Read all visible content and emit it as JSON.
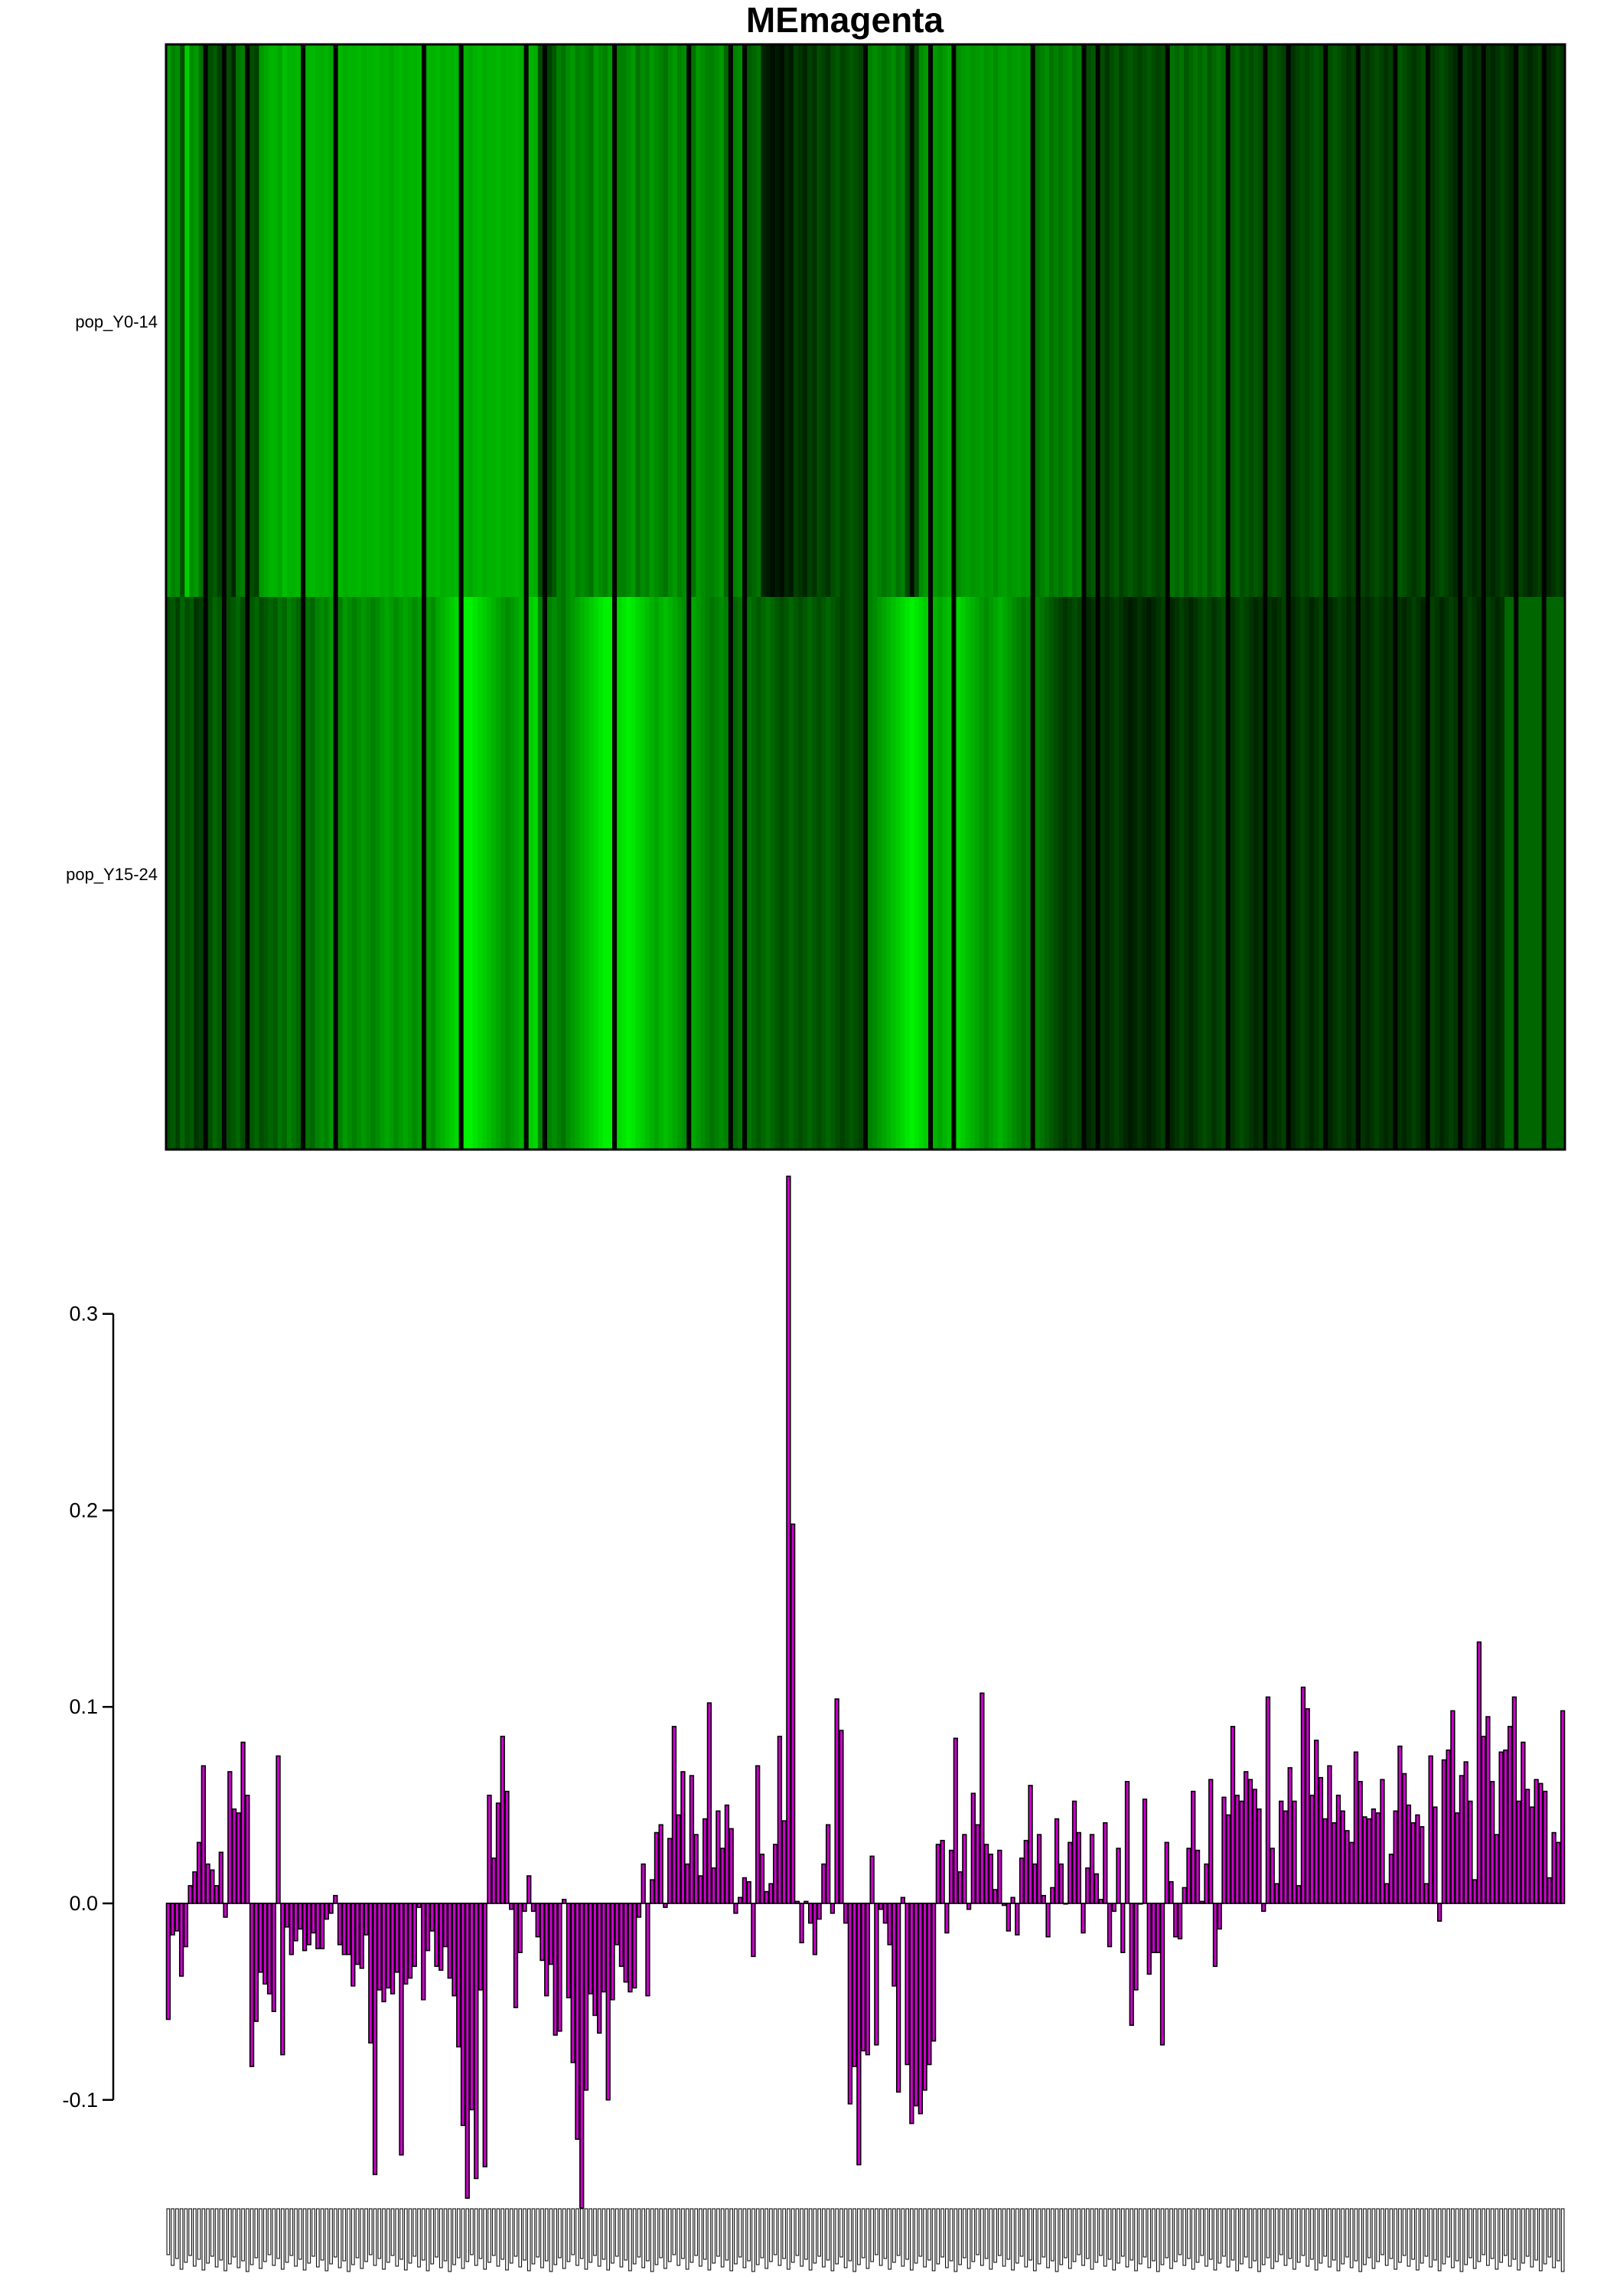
{
  "chart_data": [
    {
      "type": "heatmap",
      "title": "MEmagenta",
      "rows": [
        "pop_Y0-14",
        "pop_Y15-24"
      ],
      "n_columns": 301,
      "colormap": [
        "#00ff00",
        "#000000",
        "#ff0000"
      ],
      "highlight_column_index": 151,
      "rows_values": [
        [
          -0.6,
          -0.5,
          -0.55,
          -0.3,
          -0.8,
          -0.55,
          -0.6,
          -0.45,
          -0.2,
          -0.3,
          -0.35,
          -0.25,
          -0.4,
          -0.3,
          -0.15,
          -0.45,
          -0.5,
          -0.35,
          -0.3,
          -0.25,
          -0.6,
          -0.65,
          -0.7,
          -0.7,
          -0.65,
          -0.75,
          -0.7,
          -0.7,
          -0.72,
          -0.68,
          -0.7,
          -0.72,
          -0.7,
          -0.68,
          -0.7,
          -0.66,
          -0.7,
          -0.72,
          -0.68,
          -0.7,
          -0.7,
          -0.72,
          -0.68,
          -0.7,
          -0.7,
          -0.72,
          -0.68,
          -0.7,
          -0.66,
          -0.7,
          -0.72,
          -0.68,
          -0.7,
          -0.7,
          -0.72,
          -0.68,
          -0.7,
          -0.7,
          -0.72,
          -0.68,
          -0.7,
          -0.7,
          -0.72,
          -0.68,
          -0.7,
          -0.66,
          -0.7,
          -0.72,
          -0.68,
          -0.7,
          -0.7,
          -0.72,
          -0.68,
          -0.7,
          -0.7,
          -0.72,
          -0.68,
          -0.7,
          -0.7,
          -0.68,
          -0.3,
          -0.2,
          -0.25,
          -0.35,
          -0.5,
          -0.45,
          -0.55,
          -0.6,
          -0.5,
          -0.55,
          -0.5,
          -0.45,
          -0.6,
          -0.55,
          -0.5,
          -0.6,
          -0.55,
          -0.5,
          -0.5,
          -0.55,
          -0.6,
          -0.45,
          -0.55,
          -0.5,
          -0.6,
          -0.55,
          -0.5,
          -0.45,
          -0.55,
          -0.6,
          -0.5,
          -0.55,
          -0.5,
          -0.45,
          -0.6,
          -0.55,
          -0.5,
          -0.5,
          -0.55,
          -0.6,
          -0.4,
          -0.45,
          -0.5,
          -0.55,
          -0.3,
          -0.35,
          -0.4,
          -0.45,
          -0.15,
          -0.1,
          -0.05,
          -0.1,
          -0.05,
          -0.15,
          -0.1,
          -0.25,
          -0.2,
          -0.15,
          -0.25,
          -0.2,
          -0.3,
          -0.25,
          -0.2,
          -0.3,
          -0.35,
          -0.25,
          -0.3,
          -0.35,
          -0.3,
          -0.25,
          0.95,
          -0.5,
          -0.55,
          -0.5,
          -0.45,
          -0.5,
          -0.55,
          -0.45,
          -0.5,
          -0.3,
          -0.05,
          -0.3,
          -0.55,
          -0.6,
          -0.65,
          -0.6,
          -0.55,
          -0.6,
          -0.65,
          -0.6,
          -0.55,
          -0.6,
          -0.62,
          -0.58,
          -0.6,
          -0.62,
          -0.58,
          -0.6,
          -0.55,
          -0.6,
          -0.62,
          -0.58,
          -0.6,
          -0.62,
          -0.58,
          -0.6,
          -0.5,
          -0.45,
          -0.5,
          -0.55,
          -0.45,
          -0.5,
          -0.45,
          -0.5,
          -0.55,
          -0.45,
          -0.5,
          -0.35,
          -0.3,
          -0.35,
          -0.25,
          -0.3,
          -0.2,
          -0.3,
          -0.35,
          -0.25,
          -0.3,
          -0.35,
          -0.3,
          -0.25,
          -0.3,
          -0.35,
          -0.3,
          -0.25,
          -0.3,
          -0.35,
          -0.45,
          -0.4,
          -0.45,
          -0.35,
          -0.4,
          -0.45,
          -0.4,
          -0.45,
          -0.35,
          -0.4,
          -0.45,
          -0.4,
          -0.45,
          -0.35,
          -0.4,
          -0.3,
          -0.35,
          -0.3,
          -0.35,
          -0.3,
          -0.25,
          -0.3,
          -0.35,
          -0.3,
          -0.25,
          -0.3,
          -0.2,
          -0.25,
          -0.3,
          -0.25,
          -0.3,
          -0.35,
          -0.3,
          -0.25,
          -0.3,
          -0.35,
          -0.3,
          -0.25,
          -0.2,
          -0.25,
          -0.3,
          -0.25,
          -0.2,
          -0.25,
          -0.3,
          -0.25,
          -0.2,
          -0.25,
          -0.3,
          -0.35,
          -0.3,
          -0.25,
          -0.2,
          -0.25,
          -0.3,
          -0.25,
          -0.2,
          -0.25,
          -0.3,
          -0.25,
          -0.2,
          -0.15,
          -0.2,
          -0.25,
          -0.2,
          -0.15,
          -0.2,
          -0.25,
          -0.2,
          -0.15,
          -0.2,
          -0.25,
          -0.2,
          -0.15,
          -0.2,
          -0.25,
          -0.2,
          -0.15,
          -0.2,
          -0.25,
          -0.2,
          -0.15,
          -0.2,
          -0.25,
          -0.2,
          -0.15,
          -0.2
        ],
        [
          -0.3,
          -0.35,
          -0.25,
          -0.4,
          -0.3,
          -0.35,
          -0.2,
          -0.25,
          -0.35,
          -0.3,
          -0.4,
          -0.35,
          -0.25,
          -0.3,
          -0.35,
          -0.4,
          -0.3,
          -0.25,
          -0.35,
          -0.4,
          -0.3,
          -0.35,
          -0.4,
          -0.35,
          -0.45,
          -0.4,
          -0.5,
          -0.45,
          -0.4,
          -0.5,
          -0.45,
          -0.4,
          -0.5,
          -0.55,
          -0.5,
          -0.6,
          -0.55,
          -0.5,
          -0.6,
          -0.55,
          -0.5,
          -0.55,
          -0.6,
          -0.55,
          -0.5,
          -0.55,
          -0.6,
          -0.65,
          -0.6,
          -0.55,
          -0.6,
          -0.65,
          -0.6,
          -0.55,
          -0.6,
          -0.65,
          -0.6,
          -0.55,
          -0.65,
          -0.7,
          -0.75,
          -0.8,
          -0.85,
          -0.9,
          -0.95,
          -0.95,
          -0.9,
          -0.85,
          -0.8,
          -0.75,
          -0.7,
          -0.65,
          -0.6,
          -0.55,
          -0.6,
          -0.65,
          -0.7,
          -0.75,
          -0.8,
          -0.85,
          -0.5,
          -0.45,
          -0.5,
          -0.55,
          -0.5,
          -0.45,
          -0.55,
          -0.6,
          -0.65,
          -0.7,
          -0.75,
          -0.8,
          -0.85,
          -0.9,
          -0.95,
          -0.95,
          -0.9,
          -0.85,
          -0.9,
          -0.95,
          -0.9,
          -0.85,
          -0.8,
          -0.75,
          -0.7,
          -0.65,
          -0.7,
          -0.75,
          -0.7,
          -0.65,
          -0.6,
          -0.55,
          -0.6,
          -0.65,
          -0.6,
          -0.55,
          -0.5,
          -0.45,
          -0.5,
          -0.55,
          -0.5,
          -0.45,
          -0.4,
          -0.45,
          -0.5,
          -0.45,
          -0.4,
          -0.35,
          -0.4,
          -0.45,
          -0.4,
          -0.35,
          -0.3,
          -0.35,
          -0.4,
          -0.35,
          -0.3,
          -0.35,
          -0.4,
          -0.35,
          -0.3,
          -0.35,
          -0.4,
          -0.35,
          -0.3,
          -0.25,
          -0.3,
          -0.35,
          -0.3,
          -0.25,
          0.0,
          -0.5,
          -0.55,
          -0.6,
          -0.65,
          -0.7,
          -0.75,
          -0.8,
          -0.85,
          -0.9,
          -0.95,
          -0.9,
          -0.85,
          -0.8,
          -0.75,
          -0.7,
          -0.65,
          -0.7,
          -0.75,
          -0.8,
          -0.85,
          -0.8,
          -0.75,
          -0.7,
          -0.65,
          -0.6,
          -0.55,
          -0.6,
          -0.65,
          -0.7,
          -0.65,
          -0.6,
          -0.55,
          -0.5,
          -0.45,
          -0.5,
          -0.55,
          -0.5,
          -0.45,
          -0.4,
          -0.35,
          -0.3,
          -0.25,
          -0.2,
          -0.25,
          -0.3,
          -0.25,
          -0.2,
          -0.15,
          -0.2,
          -0.25,
          -0.2,
          -0.15,
          -0.2,
          -0.25,
          -0.2,
          -0.15,
          -0.1,
          -0.15,
          -0.2,
          -0.15,
          -0.1,
          -0.15,
          -0.2,
          -0.25,
          -0.2,
          -0.15,
          -0.2,
          -0.25,
          -0.2,
          -0.15,
          -0.2,
          -0.25,
          -0.3,
          -0.25,
          -0.2,
          -0.25,
          -0.3,
          -0.25,
          -0.2,
          -0.25,
          -0.3,
          -0.25,
          -0.2,
          -0.15,
          -0.2,
          -0.25,
          -0.2,
          -0.15,
          -0.2,
          -0.25,
          -0.2,
          -0.15,
          -0.2,
          -0.25,
          -0.2,
          -0.15,
          -0.2,
          -0.25,
          -0.2,
          -0.15,
          -0.2,
          -0.25,
          -0.2,
          -0.15,
          -0.2,
          -0.25,
          -0.2,
          -0.15,
          -0.2,
          -0.25,
          -0.2,
          -0.15,
          -0.2,
          -0.25,
          -0.2,
          -0.15,
          -0.2,
          -0.25,
          -0.2,
          -0.15,
          -0.2,
          -0.25,
          -0.2,
          -0.15,
          -0.2,
          -0.25,
          -0.2,
          -0.15,
          -0.2,
          -0.25,
          -0.2,
          -0.15,
          -0.2,
          -0.25,
          -0.2,
          -0.15,
          -0.2
        ]
      ],
      "dark_columns": [
        8,
        12,
        17,
        29,
        36,
        55,
        63,
        77,
        81,
        96,
        112,
        121,
        124,
        150,
        164,
        169,
        186,
        197,
        200,
        215,
        228,
        236,
        241,
        249,
        256,
        264,
        271,
        278,
        283,
        290,
        296
      ]
    },
    {
      "type": "bar",
      "color": "#cc00cc",
      "ylim": [
        -0.16,
        0.37
      ],
      "yticks": [
        -0.1,
        0.0,
        0.1,
        0.2,
        0.3
      ],
      "ytick_labels": [
        "-0.1",
        "0.0",
        "0.1",
        "0.2",
        "0.3"
      ],
      "xtick_labels": "unreadable (dense rotated sample labels)",
      "values": [
        -0.059,
        -0.016,
        -0.014,
        -0.037,
        -0.022,
        0.009,
        0.016,
        0.031,
        0.07,
        0.02,
        0.017,
        0.009,
        0.026,
        -0.007,
        0.067,
        0.048,
        0.046,
        0.082,
        0.055,
        -0.083,
        -0.06,
        -0.035,
        -0.041,
        -0.046,
        -0.055,
        0.075,
        -0.077,
        -0.012,
        -0.026,
        -0.019,
        -0.013,
        -0.024,
        -0.021,
        -0.015,
        -0.023,
        -0.023,
        -0.008,
        -0.005,
        0.004,
        -0.021,
        -0.026,
        -0.026,
        -0.042,
        -0.031,
        -0.033,
        -0.016,
        -0.071,
        -0.138,
        -0.044,
        -0.05,
        -0.043,
        -0.046,
        -0.035,
        -0.128,
        -0.041,
        -0.038,
        -0.032,
        -0.002,
        -0.049,
        -0.024,
        -0.014,
        -0.032,
        -0.034,
        -0.022,
        -0.038,
        -0.047,
        -0.073,
        -0.113,
        -0.15,
        -0.105,
        -0.14,
        -0.044,
        -0.134,
        0.055,
        0.023,
        0.051,
        0.085,
        0.057,
        -0.003,
        -0.053,
        -0.025,
        -0.004,
        0.014,
        -0.004,
        -0.017,
        -0.029,
        -0.047,
        -0.031,
        -0.067,
        -0.065,
        0.002,
        -0.048,
        -0.081,
        -0.12,
        -0.155,
        -0.095,
        -0.046,
        -0.057,
        -0.066,
        -0.045,
        -0.1,
        -0.049,
        -0.021,
        -0.032,
        -0.04,
        -0.045,
        -0.043,
        -0.007,
        0.02,
        -0.047,
        0.012,
        0.036,
        0.04,
        -0.002,
        0.033,
        0.09,
        0.045,
        0.067,
        0.02,
        0.065,
        0.035,
        0.014,
        0.043,
        0.102,
        0.018,
        0.047,
        0.028,
        0.05,
        0.038,
        -0.005,
        0.003,
        0.013,
        0.011,
        -0.027,
        0.07,
        0.025,
        0.006,
        0.01,
        0.03,
        0.085,
        0.042,
        0.37,
        0.193,
        0.001,
        -0.02,
        0.001,
        -0.01,
        -0.026,
        -0.008,
        0.02,
        0.04,
        -0.005,
        0.104,
        0.088,
        -0.01,
        -0.102,
        -0.083,
        -0.133,
        -0.075,
        -0.077,
        0.024,
        -0.072,
        -0.003,
        -0.01,
        -0.021,
        -0.042,
        -0.096,
        0.003,
        -0.082,
        -0.112,
        -0.103,
        -0.107,
        -0.095,
        -0.082,
        -0.07,
        0.03,
        0.032,
        -0.015,
        0.027,
        0.084,
        0.016,
        0.035,
        -0.003,
        0.056,
        0.04,
        0.107,
        0.03,
        0.025,
        0.007,
        0.027,
        -0.001,
        -0.014,
        0.003,
        -0.016,
        0.023,
        0.032,
        0.06,
        0.02,
        0.035,
        0.004,
        -0.017,
        0.008,
        0.043,
        0.02,
        0.0,
        0.031,
        0.052,
        0.036,
        -0.015,
        0.018,
        0.035,
        0.015,
        0.002,
        0.041,
        -0.022,
        -0.004,
        0.028,
        -0.025,
        0.062,
        -0.062,
        -0.044,
        0.0,
        0.053,
        -0.036,
        -0.025,
        -0.025,
        -0.072,
        0.031,
        0.011,
        -0.017,
        -0.018,
        0.008,
        0.028,
        0.057,
        0.027,
        0.001,
        0.02,
        0.063,
        -0.032,
        -0.013,
        0.054,
        0.045,
        0.09,
        0.055,
        0.052,
        0.067,
        0.063,
        0.058,
        0.048,
        -0.004,
        0.105,
        0.028,
        0.01,
        0.052,
        0.047,
        0.069,
        0.052,
        0.009,
        0.11,
        0.099,
        0.055,
        0.083,
        0.064,
        0.043,
        0.07,
        0.041,
        0.055,
        0.047,
        0.037,
        0.031,
        0.077,
        0.062,
        0.044,
        0.043,
        0.048,
        0.046,
        0.063,
        0.01,
        0.025,
        0.047,
        0.08,
        0.066,
        0.05,
        0.041,
        0.045,
        0.039,
        0.01,
        0.075,
        0.049,
        -0.009,
        0.073,
        0.078,
        0.098,
        0.046,
        0.065,
        0.072,
        0.052,
        0.012,
        0.133,
        0.085,
        0.095,
        0.062,
        0.035,
        0.077,
        0.078,
        0.09,
        0.105,
        0.052,
        0.082,
        0.058,
        0.049,
        0.063,
        0.061,
        0.057,
        0.013,
        0.036,
        0.031,
        0.098
      ]
    }
  ]
}
